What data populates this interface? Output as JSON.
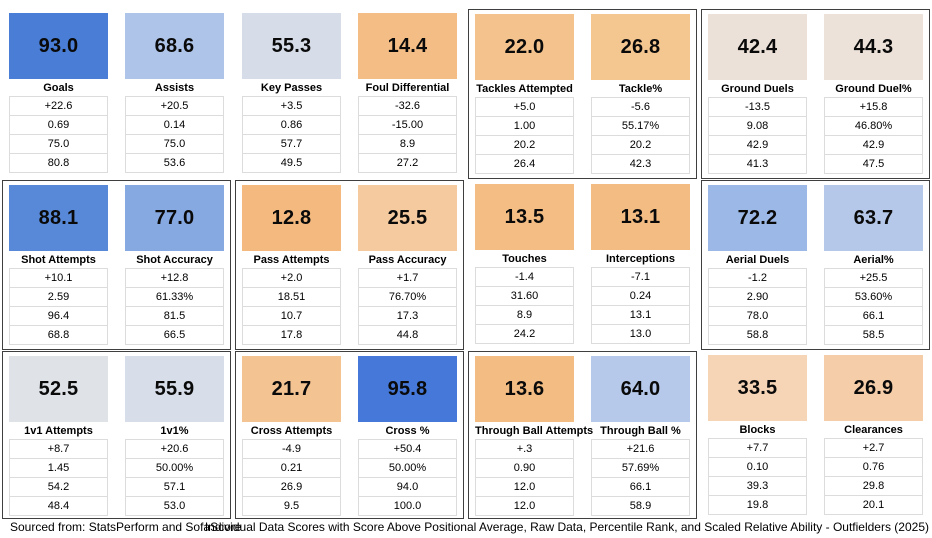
{
  "footer": {
    "source": "Sourced from: StatsPerform and SofaScore",
    "title": "Individual Data Scores with Score Above Positional Average, Raw Data, Percentile Rank, and Scaled Relative Ability - Outfielders (2025)"
  },
  "chart_data": {
    "type": "table",
    "title": "Individual Data Scores with Score Above Positional Average, Raw Data, Percentile Rank, and Scaled Relative Ability - Outfielders (2025)",
    "source": "Sourced from: StatsPerform and SofaScore",
    "value_row_meanings": [
      "Score Above Positional Average",
      "Raw Data",
      "Percentile Rank",
      "Scaled Relative Ability"
    ],
    "accent_colors": {
      "high_score_blue": "#4a7ed6",
      "low_score_orange": "#f3bd85",
      "group_border": "#3f3f3f"
    },
    "rows": [
      {
        "groups": [
          {
            "bordered": false,
            "cards": [
              {
                "label": "Goals",
                "score": "93.0",
                "color": "#4a7ed6",
                "values": [
                  "+22.6",
                  "0.69",
                  "75.0",
                  "80.8"
                ]
              },
              {
                "label": "Assists",
                "score": "68.6",
                "color": "#aec5e9",
                "values": [
                  "+20.5",
                  "0.14",
                  "75.0",
                  "53.6"
                ]
              }
            ]
          },
          {
            "bordered": false,
            "cards": [
              {
                "label": "Key Passes",
                "score": "55.3",
                "color": "#d6dde8",
                "values": [
                  "+3.5",
                  "0.86",
                  "57.7",
                  "49.5"
                ]
              },
              {
                "label": "Foul Differential",
                "score": "14.4",
                "color": "#f3bd85",
                "values": [
                  "-32.6",
                  "-15.00",
                  "8.9",
                  "27.2"
                ]
              }
            ]
          },
          {
            "bordered": true,
            "cards": [
              {
                "label": "Tackles Attempted",
                "score": "22.0",
                "color": "#f4c38d",
                "values": [
                  "+5.0",
                  "1.00",
                  "20.2",
                  "26.4"
                ]
              },
              {
                "label": "Tackle%",
                "score": "26.8",
                "color": "#f4c690",
                "values": [
                  "-5.6",
                  "55.17%",
                  "20.2",
                  "42.3"
                ]
              }
            ]
          },
          {
            "bordered": true,
            "cards": [
              {
                "label": "Ground Duels",
                "score": "42.4",
                "color": "#ece1d8",
                "values": [
                  "-13.5",
                  "9.08",
                  "42.9",
                  "41.3"
                ]
              },
              {
                "label": "Ground Duel%",
                "score": "44.3",
                "color": "#ece2da",
                "values": [
                  "+15.8",
                  "46.80%",
                  "42.9",
                  "47.5"
                ]
              }
            ]
          }
        ]
      },
      {
        "groups": [
          {
            "bordered": true,
            "cards": [
              {
                "label": "Shot Attempts",
                "score": "88.1",
                "color": "#5889d9",
                "values": [
                  "+10.1",
                  "2.59",
                  "96.4",
                  "68.8"
                ]
              },
              {
                "label": "Shot Accuracy",
                "score": "77.0",
                "color": "#87a9e2",
                "values": [
                  "+12.8",
                  "61.33%",
                  "81.5",
                  "66.5"
                ]
              }
            ]
          },
          {
            "bordered": true,
            "cards": [
              {
                "label": "Pass Attempts",
                "score": "12.8",
                "color": "#f3b97e",
                "values": [
                  "+2.0",
                  "18.51",
                  "10.7",
                  "17.8"
                ]
              },
              {
                "label": "Pass Accuracy",
                "score": "25.5",
                "color": "#f5ca9f",
                "values": [
                  "+1.7",
                  "76.70%",
                  "17.3",
                  "44.8"
                ]
              }
            ]
          },
          {
            "bordered": false,
            "cards": [
              {
                "label": "Touches",
                "score": "13.5",
                "color": "#f3bd84",
                "values": [
                  "-1.4",
                  "31.60",
                  "8.9",
                  "24.2"
                ]
              },
              {
                "label": "Interceptions",
                "score": "13.1",
                "color": "#f3bc83",
                "values": [
                  "-7.1",
                  "0.24",
                  "13.1",
                  "13.0"
                ]
              }
            ]
          },
          {
            "bordered": true,
            "cards": [
              {
                "label": "Aerial Duels",
                "score": "72.2",
                "color": "#9cb8e6",
                "values": [
                  "-1.2",
                  "2.90",
                  "78.0",
                  "58.8"
                ]
              },
              {
                "label": "Aerial%",
                "score": "63.7",
                "color": "#b5c8ea",
                "values": [
                  "+25.5",
                  "53.60%",
                  "66.1",
                  "58.5"
                ]
              }
            ]
          }
        ]
      },
      {
        "groups": [
          {
            "bordered": true,
            "cards": [
              {
                "label": "1v1 Attempts",
                "score": "52.5",
                "color": "#dfe3e8",
                "values": [
                  "+8.7",
                  "1.45",
                  "54.2",
                  "48.4"
                ]
              },
              {
                "label": "1v1%",
                "score": "55.9",
                "color": "#d7dde9",
                "values": [
                  "+20.6",
                  "50.00%",
                  "57.1",
                  "53.0"
                ]
              }
            ]
          },
          {
            "bordered": true,
            "cards": [
              {
                "label": "Cross Attempts",
                "score": "21.7",
                "color": "#f3c392",
                "values": [
                  "-4.9",
                  "0.21",
                  "26.9",
                  "9.5"
                ]
              },
              {
                "label": "Cross %",
                "score": "95.8",
                "color": "#4578d8",
                "values": [
                  "+50.4",
                  "50.00%",
                  "94.0",
                  "100.0"
                ]
              }
            ]
          },
          {
            "bordered": true,
            "cards": [
              {
                "label": "Through Ball Attempts",
                "score": "13.6",
                "color": "#f3bc83",
                "values": [
                  "+.3",
                  "0.90",
                  "12.0",
                  "12.0"
                ]
              },
              {
                "label": "Through Ball %",
                "score": "64.0",
                "color": "#b6c9ea",
                "values": [
                  "+21.6",
                  "57.69%",
                  "66.1",
                  "58.9"
                ]
              }
            ]
          },
          {
            "bordered": false,
            "cards": [
              {
                "label": "Blocks",
                "score": "33.5",
                "color": "#f6d5b6",
                "values": [
                  "+7.7",
                  "0.10",
                  "39.3",
                  "19.8"
                ]
              },
              {
                "label": "Clearances",
                "score": "26.9",
                "color": "#f5cda9",
                "values": [
                  "+2.7",
                  "0.76",
                  "29.8",
                  "20.1"
                ]
              }
            ]
          }
        ]
      }
    ]
  }
}
